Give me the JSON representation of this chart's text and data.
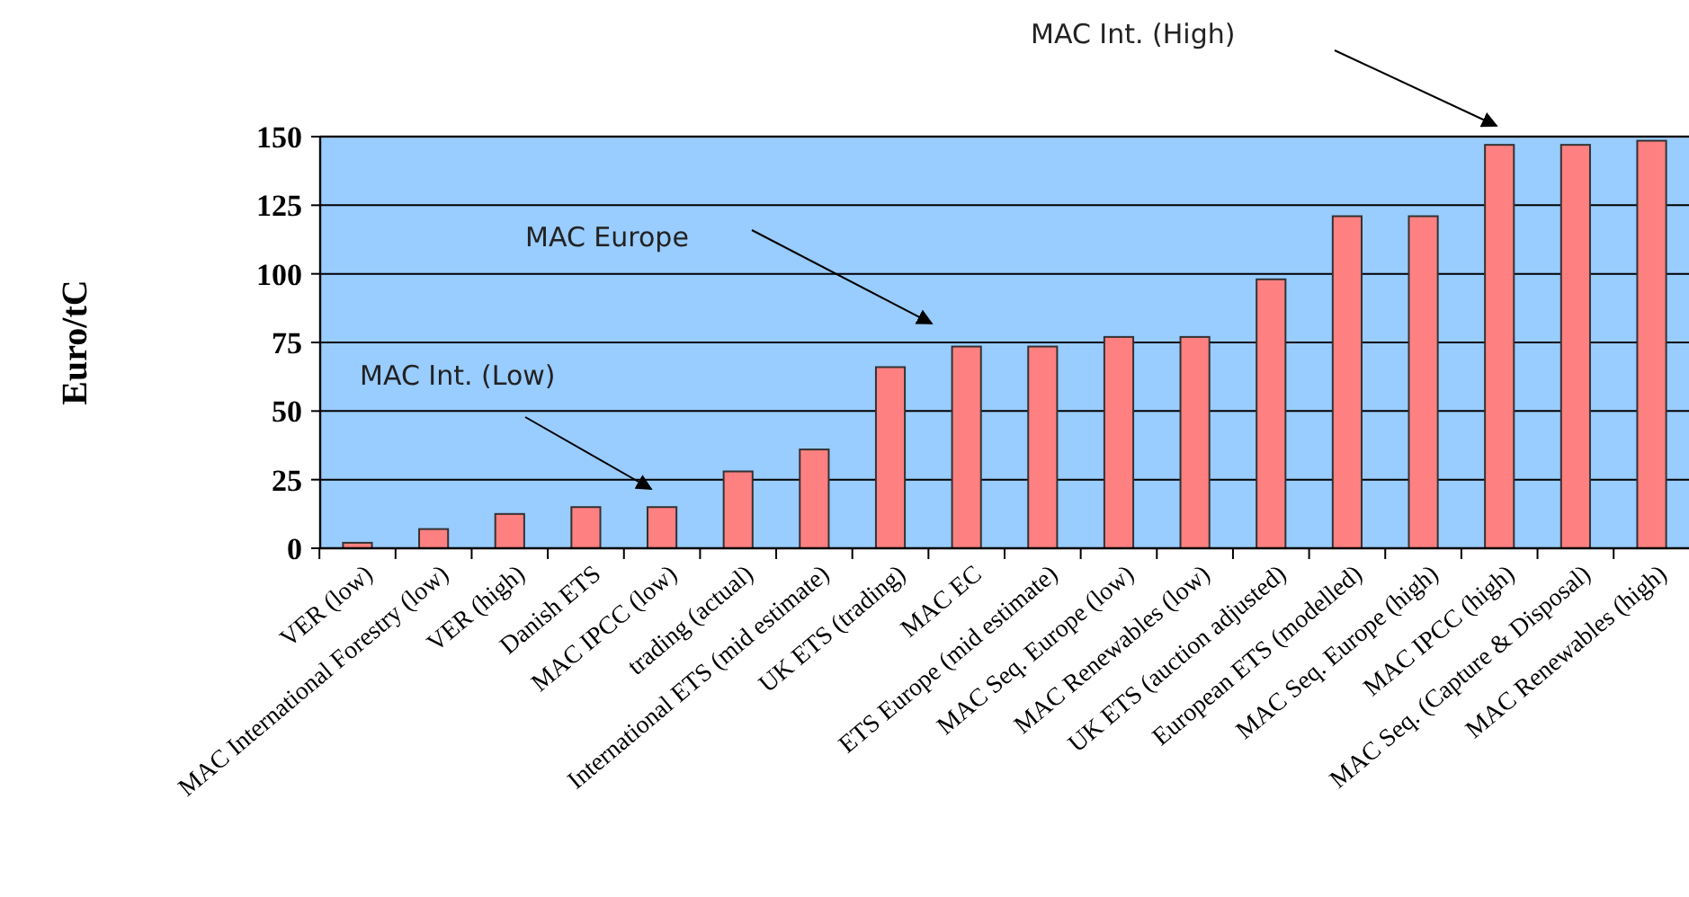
{
  "chart_data": {
    "type": "bar",
    "ylabel": "Euro/tC",
    "categories": [
      "VER (low)",
      "MAC International Forestry (low)",
      "VER (high)",
      "Danish ETS",
      "MAC  IPCC (low)",
      "trading (actual)",
      "International ETS  (mid estimate)",
      "UK ETS (trading)",
      "MAC EC",
      "ETS Europe (mid estimate)",
      "MAC Seq. Europe (low)",
      "MAC Renewables (low)",
      "UK ETS (auction adjusted)",
      "European ETS (modelled)",
      "MAC Seq. Europe (high)",
      "MAC  IPCC (high)",
      "MAC Seq. (Capture & Disposal)",
      "MAC Renewables (high)"
    ],
    "values": [
      2,
      7,
      12.5,
      15,
      15,
      28,
      36,
      66,
      73.5,
      73.5,
      77,
      77,
      98,
      121,
      121,
      147,
      147,
      148.5
    ],
    "color": "#ff8080",
    "ylim": [
      0,
      150
    ],
    "yticks": [
      0,
      25,
      50,
      75,
      100,
      125,
      150
    ],
    "grid": "y",
    "annotations": [
      "MAC Int. (Low)",
      "MAC Europe",
      "MAC Int. (High)"
    ]
  }
}
